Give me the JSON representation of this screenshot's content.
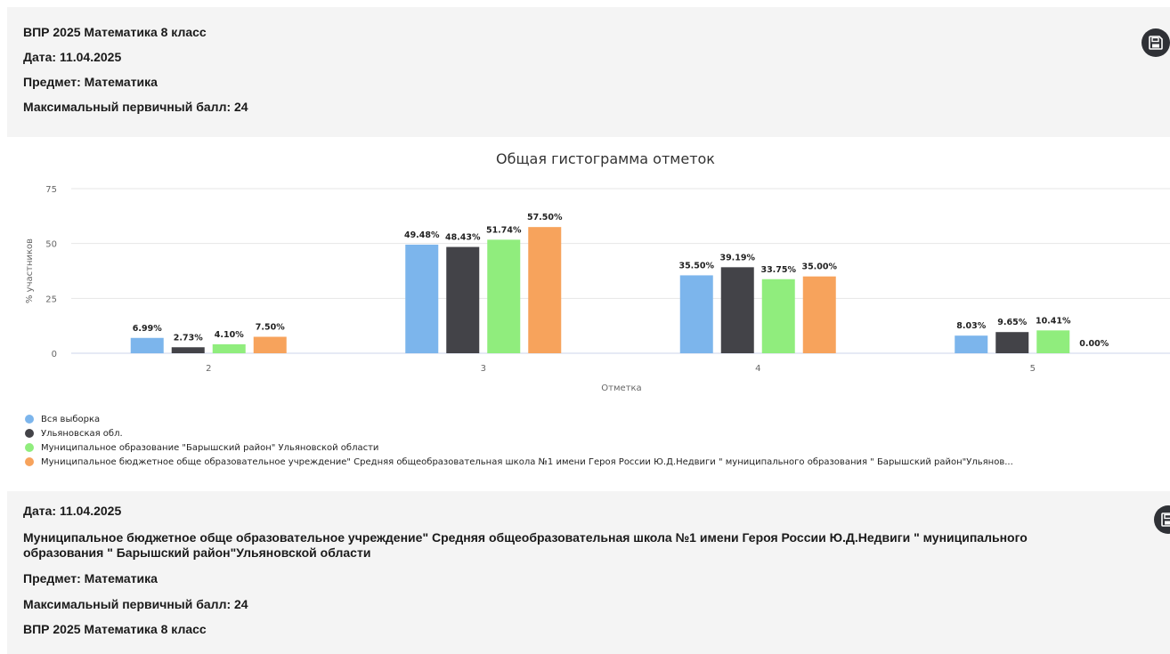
{
  "header": {
    "title": "ВПР 2025 Математика 8 класс",
    "date": "Дата: 11.04.2025",
    "subject": "Предмет: Математика",
    "max_score": "Максимальный первичный балл: 24"
  },
  "chart_data": {
    "type": "bar",
    "title": "Общая гистограмма отметок",
    "xlabel": "Отметка",
    "ylabel": "% участников",
    "categories": [
      "2",
      "3",
      "4",
      "5"
    ],
    "ylim": [
      0,
      75
    ],
    "yticks": [
      0,
      25,
      50,
      75
    ],
    "grid": true,
    "legend_position": "bottom-left",
    "series": [
      {
        "name": "Вся выборка",
        "color": "#7cb5ec",
        "values": [
          6.99,
          49.48,
          35.5,
          8.03
        ],
        "labels": [
          "6.99%",
          "49.48%",
          "35.50%",
          "8.03%"
        ]
      },
      {
        "name": "Ульяновская обл.",
        "color": "#434348",
        "values": [
          2.73,
          48.43,
          39.19,
          9.65
        ],
        "labels": [
          "2.73%",
          "48.43%",
          "39.19%",
          "9.65%"
        ]
      },
      {
        "name": "Муниципальное образование \"Барышский район\" Ульяновской области",
        "color": "#90ed7d",
        "values": [
          4.1,
          51.74,
          33.75,
          10.41
        ],
        "labels": [
          "4.10%",
          "51.74%",
          "33.75%",
          "10.41%"
        ]
      },
      {
        "name": "Муниципальное бюджетное обще образовательное учреждение\" Средняя общеобразовательная школа №1 имени Героя России Ю.Д.Недвиги \" муниципального образования \" Барышский район\"Ульянов...",
        "color": "#f7a35c",
        "values": [
          7.5,
          57.5,
          35.0,
          0.0
        ],
        "labels": [
          "7.50%",
          "57.50%",
          "35.00%",
          "0.00%"
        ]
      }
    ]
  },
  "footer": {
    "date": "Дата: 11.04.2025",
    "school": "Муниципальное бюджетное обще образовательное учреждение\" Средняя общеобразовательная школа №1 имени Героя России Ю.Д.Недвиги \" муниципального образования \" Барышский район\"Ульяновской области",
    "subject": "Предмет: Математика",
    "max_score": "Максимальный первичный балл: 24",
    "title": "ВПР 2025 Математика 8 класс"
  },
  "icons": {
    "save": "save-icon"
  }
}
